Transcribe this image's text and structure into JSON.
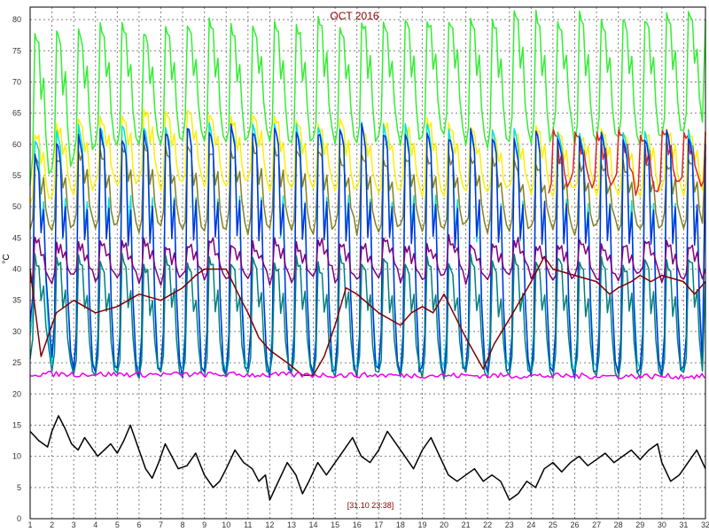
{
  "chart_data": {
    "type": "line",
    "title": "OCT 2016",
    "timestamp": "[31.10 23:38]",
    "ylabel": "°C",
    "xlabel": "",
    "xlim": [
      1,
      32
    ],
    "ylim": [
      0,
      82
    ],
    "x_ticks": [
      "1",
      "2",
      "3",
      "4",
      "5",
      "6",
      "7",
      "8",
      "9",
      "10",
      "11",
      "12",
      "13",
      "14",
      "15",
      "16",
      "17",
      "18",
      "19",
      "20",
      "21",
      "22",
      "23",
      "24",
      "25",
      "26",
      "27",
      "28",
      "29",
      "30",
      "31",
      "32"
    ],
    "y_ticks": [
      "0",
      "5",
      "10",
      "15",
      "20",
      "25",
      "30",
      "35",
      "40",
      "45",
      "50",
      "55",
      "60",
      "65",
      "70",
      "75",
      "80"
    ],
    "grid": true,
    "legend": "none",
    "series": [
      {
        "color": "#33ee33",
        "style": "daily-cycle",
        "peaks": [
          78,
          78,
          78,
          79,
          79,
          78,
          79,
          79,
          80,
          79,
          79,
          80,
          79,
          80,
          79,
          80,
          79,
          80,
          80,
          80,
          80,
          80,
          81,
          81,
          80,
          81,
          80,
          80,
          80,
          81,
          81
        ],
        "troughs": [
          54,
          56,
          58,
          60,
          60,
          60,
          60,
          61,
          60,
          60,
          61,
          60,
          60,
          61,
          60,
          60,
          61,
          60,
          61,
          62,
          60,
          60,
          61,
          60,
          62,
          60,
          61,
          61,
          60,
          61,
          62
        ],
        "points": [
          [
            1,
            55
          ],
          [
            32,
            80
          ]
        ]
      },
      {
        "color": "#ffee00",
        "style": "daily-cycle",
        "peaks": [
          62,
          63,
          64,
          64,
          65,
          66,
          65,
          66,
          65,
          64,
          65,
          64,
          64,
          63,
          64,
          63,
          64,
          63,
          64,
          63,
          63,
          62,
          62,
          63,
          62,
          62,
          63,
          62,
          62,
          62,
          62
        ],
        "troughs": [
          50,
          52,
          52,
          54,
          53,
          54,
          53,
          54,
          53,
          53,
          54,
          53,
          53,
          53,
          52,
          53,
          52,
          53,
          52,
          52,
          52,
          52,
          53,
          52,
          52,
          53,
          52,
          52,
          52,
          53,
          52
        ],
        "points": [
          [
            1,
            55
          ],
          [
            32,
            62
          ]
        ]
      },
      {
        "color": "#808020",
        "style": "daily-cycle",
        "peaks": [
          58,
          58,
          59,
          59,
          60,
          60,
          59,
          60,
          59,
          59,
          60,
          59,
          59,
          59,
          58,
          58,
          58,
          58,
          58,
          58,
          58,
          58,
          57,
          57,
          58,
          57,
          57,
          57,
          58,
          57,
          58
        ],
        "troughs": [
          46,
          46,
          47,
          46,
          47,
          46,
          47,
          46,
          46,
          47,
          46,
          47,
          46,
          46,
          47,
          46,
          46,
          47,
          46,
          46,
          47,
          46,
          46,
          47,
          46,
          46,
          47,
          46,
          46,
          47,
          46
        ],
        "points": [
          [
            1,
            47
          ],
          [
            32,
            58
          ]
        ]
      },
      {
        "color": "#dd2222",
        "style": "daily-cycle",
        "peaks": [
          62,
          62,
          62,
          62,
          62,
          62,
          62,
          62
        ],
        "troughs": [
          52,
          54,
          53,
          54,
          52,
          53,
          54,
          53
        ],
        "points": [
          [
            24.8,
            55
          ],
          [
            32,
            62
          ]
        ]
      },
      {
        "color": "#00e0e8",
        "style": "daily-cycle",
        "peaks": [
          61,
          62,
          63,
          63,
          63,
          63,
          63,
          63,
          63,
          63,
          63,
          63,
          63,
          63,
          63,
          63,
          63,
          63,
          63,
          62,
          62,
          62,
          62,
          62,
          62,
          62,
          62,
          62,
          62,
          62,
          62
        ],
        "troughs": [
          29,
          25,
          24,
          24,
          24,
          24,
          24,
          24,
          24,
          24,
          24,
          24,
          24,
          24,
          24,
          24,
          24,
          24,
          24,
          24,
          24,
          24,
          24,
          24,
          24,
          24,
          24,
          24,
          24,
          24,
          24
        ],
        "points": [
          [
            1,
            32
          ],
          [
            32,
            58
          ]
        ]
      },
      {
        "color": "#0033dd",
        "style": "daily-cycle",
        "peaks": [
          58,
          60,
          61,
          62,
          61,
          62,
          62,
          63,
          62,
          63,
          62,
          63,
          62,
          62,
          62,
          63,
          62,
          62,
          62,
          61,
          62,
          61,
          61,
          62,
          61,
          61,
          62,
          61,
          61,
          62,
          61
        ],
        "troughs": [
          31,
          26,
          24,
          23,
          24,
          23,
          24,
          23,
          24,
          23,
          24,
          23,
          24,
          23,
          24,
          23,
          24,
          23,
          24,
          23,
          24,
          23,
          24,
          23,
          24,
          23,
          24,
          23,
          24,
          23,
          24
        ],
        "points": [
          [
            1,
            32
          ],
          [
            32,
            60
          ]
        ]
      },
      {
        "color": "#800080",
        "style": "daily-cycle",
        "peaks": [
          45,
          44,
          44,
          45,
          44,
          45,
          44,
          44,
          45,
          44,
          44,
          45,
          44,
          45,
          44,
          44,
          45,
          44,
          44,
          45,
          44,
          44,
          45,
          44,
          44,
          45,
          44,
          44,
          45,
          44,
          44
        ],
        "troughs": [
          38,
          38,
          39,
          38,
          39,
          38,
          38,
          39,
          38,
          38,
          39,
          38,
          38,
          39,
          38,
          38,
          39,
          38,
          38,
          39,
          38,
          38,
          39,
          38,
          38,
          39,
          38,
          38,
          39,
          38,
          38
        ],
        "points": [
          [
            1,
            40
          ],
          [
            32,
            40
          ]
        ]
      },
      {
        "color": "#008080",
        "style": "daily-cycle",
        "peaks": [
          42,
          42,
          42,
          41,
          42,
          41,
          42,
          41,
          42,
          41,
          42,
          41,
          42,
          41,
          42,
          41,
          42,
          41,
          42,
          41,
          42,
          41,
          42,
          41,
          42,
          41,
          42,
          41,
          42,
          41,
          42
        ],
        "troughs": [
          26,
          24,
          23,
          23,
          23,
          23,
          23,
          23,
          23,
          23,
          23,
          23,
          23,
          23,
          23,
          23,
          23,
          23,
          23,
          23,
          23,
          23,
          23,
          23,
          23,
          23,
          23,
          23,
          23,
          23,
          23
        ],
        "points": [
          [
            1,
            27
          ],
          [
            32,
            38
          ]
        ]
      },
      {
        "color": "#800000",
        "style": "polyline",
        "points": [
          [
            1,
            40
          ],
          [
            1.5,
            26
          ],
          [
            2.2,
            33
          ],
          [
            3,
            35
          ],
          [
            4,
            33
          ],
          [
            5,
            34
          ],
          [
            6,
            36
          ],
          [
            7,
            35
          ],
          [
            8,
            37
          ],
          [
            8.6,
            39
          ],
          [
            9,
            40
          ],
          [
            9.4,
            40
          ],
          [
            10,
            40
          ],
          [
            10.7,
            35
          ],
          [
            11,
            33
          ],
          [
            11.5,
            29
          ],
          [
            12,
            27
          ],
          [
            12.8,
            25
          ],
          [
            13.5,
            23
          ],
          [
            14,
            23
          ],
          [
            14.5,
            26
          ],
          [
            15,
            31
          ],
          [
            15.5,
            37
          ],
          [
            16,
            36
          ],
          [
            17,
            33
          ],
          [
            18,
            31
          ],
          [
            18.5,
            33
          ],
          [
            19,
            34
          ],
          [
            19.5,
            33
          ],
          [
            20,
            36
          ],
          [
            21,
            29
          ],
          [
            21.8,
            24
          ],
          [
            22.3,
            28
          ],
          [
            23,
            32
          ],
          [
            23.5,
            35
          ],
          [
            24,
            38
          ],
          [
            24.6,
            42
          ],
          [
            25,
            40
          ],
          [
            26,
            39
          ],
          [
            27,
            38
          ],
          [
            27.6,
            36
          ],
          [
            28,
            37
          ],
          [
            28.6,
            38
          ],
          [
            29,
            39
          ],
          [
            29.5,
            38
          ],
          [
            30,
            39
          ],
          [
            31,
            38
          ],
          [
            31.5,
            36
          ],
          [
            32,
            38
          ]
        ]
      },
      {
        "color": "#ee00ee",
        "style": "noise",
        "points": [
          [
            1,
            23.2
          ],
          [
            32,
            22.8
          ]
        ]
      },
      {
        "color": "#000000",
        "style": "polyline",
        "points": [
          [
            1,
            14
          ],
          [
            1.4,
            12.5
          ],
          [
            1.8,
            11.5
          ],
          [
            2,
            14
          ],
          [
            2.3,
            16.5
          ],
          [
            2.6,
            14.5
          ],
          [
            2.9,
            12
          ],
          [
            3.2,
            11
          ],
          [
            3.5,
            13
          ],
          [
            3.8,
            11.5
          ],
          [
            4.1,
            10
          ],
          [
            4.4,
            11
          ],
          [
            4.7,
            12
          ],
          [
            5,
            10.5
          ],
          [
            5.3,
            12.5
          ],
          [
            5.6,
            15
          ],
          [
            6,
            11
          ],
          [
            6.3,
            8
          ],
          [
            6.6,
            6.5
          ],
          [
            6.9,
            9
          ],
          [
            7.2,
            12
          ],
          [
            7.5,
            10
          ],
          [
            7.8,
            8
          ],
          [
            8.2,
            8.5
          ],
          [
            8.6,
            10.5
          ],
          [
            9,
            7
          ],
          [
            9.4,
            5
          ],
          [
            9.7,
            6
          ],
          [
            10,
            8
          ],
          [
            10.4,
            11
          ],
          [
            10.8,
            9
          ],
          [
            11.2,
            8
          ],
          [
            11.5,
            6
          ],
          [
            11.8,
            7
          ],
          [
            12,
            3
          ],
          [
            12.4,
            6
          ],
          [
            12.8,
            9
          ],
          [
            13.2,
            7
          ],
          [
            13.5,
            4
          ],
          [
            13.8,
            6
          ],
          [
            14.2,
            9
          ],
          [
            14.6,
            7
          ],
          [
            15,
            9
          ],
          [
            15.4,
            11
          ],
          [
            15.8,
            13
          ],
          [
            16.2,
            10
          ],
          [
            16.6,
            9
          ],
          [
            17,
            11
          ],
          [
            17.4,
            14
          ],
          [
            17.8,
            12
          ],
          [
            18.2,
            10
          ],
          [
            18.6,
            8
          ],
          [
            19,
            11
          ],
          [
            19.4,
            13
          ],
          [
            19.8,
            10
          ],
          [
            20.2,
            7
          ],
          [
            20.6,
            6
          ],
          [
            21,
            7
          ],
          [
            21.4,
            8
          ],
          [
            21.8,
            6
          ],
          [
            22.2,
            7
          ],
          [
            22.6,
            6
          ],
          [
            23,
            3
          ],
          [
            23.4,
            4
          ],
          [
            23.8,
            6
          ],
          [
            24.2,
            5
          ],
          [
            24.6,
            8
          ],
          [
            25,
            9
          ],
          [
            25.4,
            7.5
          ],
          [
            25.8,
            9
          ],
          [
            26.2,
            10
          ],
          [
            26.6,
            8.5
          ],
          [
            27,
            9.5
          ],
          [
            27.4,
            10.5
          ],
          [
            27.8,
            9
          ],
          [
            28.2,
            10
          ],
          [
            28.6,
            11
          ],
          [
            29,
            9.5
          ],
          [
            29.4,
            11
          ],
          [
            29.8,
            12
          ],
          [
            30,
            9
          ],
          [
            30.4,
            6
          ],
          [
            30.8,
            7
          ],
          [
            31.2,
            9
          ],
          [
            31.6,
            11
          ],
          [
            32,
            8
          ]
        ]
      }
    ]
  }
}
